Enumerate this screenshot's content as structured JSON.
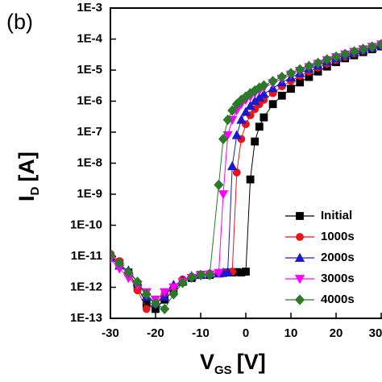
{
  "chart_data": {
    "type": "line",
    "panel_label": "(b)",
    "x_label": {
      "main": "V",
      "sub": "GS",
      "unit": "[V]"
    },
    "y_label": {
      "main": "I",
      "sub": "D",
      "unit": "[A]"
    },
    "ylog": true,
    "xlim": [
      -30,
      30
    ],
    "xticks": [
      -30,
      -20,
      -10,
      0,
      10,
      20,
      30
    ],
    "ylim": [
      1e-13,
      0.001
    ],
    "yticks": [
      {
        "value": 1e-13,
        "label": "1E-13"
      },
      {
        "value": 1e-12,
        "label": "1E-12"
      },
      {
        "value": 1e-11,
        "label": "1E-11"
      },
      {
        "value": 1e-10,
        "label": "1E-10"
      },
      {
        "value": 1e-09,
        "label": "1E-9"
      },
      {
        "value": 1e-08,
        "label": "1E-8"
      },
      {
        "value": 1e-07,
        "label": "1E-7"
      },
      {
        "value": 1e-06,
        "label": "1E-6"
      },
      {
        "value": 1e-05,
        "label": "1E-5"
      },
      {
        "value": 0.0001,
        "label": "1E-4"
      },
      {
        "value": 0.001,
        "label": "1E-3"
      }
    ],
    "legend": "lower right",
    "x": [
      -30,
      -28,
      -26,
      -24,
      -22,
      -20,
      -18,
      -16,
      -14,
      -12,
      -10,
      -8,
      -6,
      -5,
      -4,
      -3,
      -2,
      -1,
      0,
      1,
      2,
      3,
      4,
      6,
      8,
      10,
      12,
      14,
      16,
      18,
      20,
      22,
      24,
      26,
      28,
      30
    ],
    "series": [
      {
        "name": "Initial",
        "color": "#000000",
        "marker": "square",
        "values": [
          1e-11,
          6e-12,
          3e-12,
          1e-12,
          3e-13,
          2e-13,
          4e-13,
          8e-13,
          1.5e-12,
          2e-12,
          2.5e-12,
          2.5e-12,
          2.8e-12,
          2.9e-12,
          3e-12,
          3e-12,
          3.1e-12,
          3e-12,
          3.2e-12,
          3e-09,
          5e-08,
          1.5e-07,
          3e-07,
          8e-07,
          1.5e-06,
          2.5e-06,
          4e-06,
          6e-06,
          9e-06,
          1.3e-05,
          1.8e-05,
          2.4e-05,
          3e-05,
          3.8e-05,
          4.7e-05,
          5.8e-05
        ]
      },
      {
        "name": "1000s",
        "color": "#e8141b",
        "marker": "circle",
        "values": [
          1.2e-11,
          7e-12,
          2.5e-12,
          8e-13,
          2e-13,
          3e-13,
          6e-13,
          1e-12,
          1.8e-12,
          2.2e-12,
          2.6e-12,
          2.8e-12,
          2.9e-12,
          3e-12,
          3e-12,
          3.2e-12,
          5e-09,
          6e-08,
          1.8e-07,
          3.5e-07,
          5.5e-07,
          8e-07,
          1.1e-06,
          1.8e-06,
          3e-06,
          4.5e-06,
          6.5e-06,
          9e-06,
          1.2e-05,
          1.6e-05,
          2.1e-05,
          2.7e-05,
          3.4e-05,
          4.2e-05,
          5.1e-05,
          6.2e-05
        ]
      },
      {
        "name": "2000s",
        "color": "#1a1acc",
        "marker": "triangle-up",
        "values": [
          9e-12,
          5e-12,
          3.5e-12,
          1.5e-12,
          5e-13,
          3e-13,
          5e-13,
          1.2e-12,
          1.6e-12,
          2.3e-12,
          2.5e-12,
          2.7e-12,
          2.8e-12,
          3e-12,
          3.1e-12,
          8e-09,
          8e-08,
          2.5e-07,
          4.5e-07,
          7e-07,
          1e-06,
          1.3e-06,
          1.7e-06,
          2.6e-06,
          4e-06,
          5.8e-06,
          8e-06,
          1.1e-05,
          1.4e-05,
          1.9e-05,
          2.4e-05,
          3e-05,
          3.7e-05,
          4.5e-05,
          5.4e-05,
          6.5e-05
        ]
      },
      {
        "name": "3000s",
        "color": "#ff00ff",
        "marker": "triangle-down",
        "values": [
          8e-12,
          4e-12,
          2e-12,
          1.2e-12,
          7e-13,
          4e-13,
          7e-13,
          1e-12,
          1.5e-12,
          2e-12,
          2.4e-12,
          2.6e-12,
          2.9e-12,
          1e-09,
          8e-08,
          2.5e-07,
          5e-07,
          8e-07,
          1.1e-06,
          1.4e-06,
          1.8e-06,
          2.2e-06,
          2.7e-06,
          3.8e-06,
          5.3e-06,
          7.2e-06,
          9.5e-06,
          1.25e-05,
          1.6e-05,
          2.1e-05,
          2.6e-05,
          3.2e-05,
          3.9e-05,
          4.7e-05,
          5.6e-05,
          6.7e-05
        ]
      },
      {
        "name": "4000s",
        "color": "#2a7a2a",
        "marker": "diamond",
        "values": [
          1.1e-11,
          6e-12,
          3e-12,
          1.5e-12,
          6e-13,
          3e-13,
          2e-13,
          6e-13,
          1.4e-12,
          2.1e-12,
          2.5e-12,
          2.5e-12,
          2e-09,
          6e-08,
          2.5e-07,
          5e-07,
          8e-07,
          1.1e-06,
          1.4e-06,
          1.8e-06,
          2.2e-06,
          2.7e-06,
          3.2e-06,
          4.4e-06,
          6e-06,
          8e-06,
          1.05e-05,
          1.35e-05,
          1.7e-05,
          2.2e-05,
          2.7e-05,
          3.3e-05,
          4e-05,
          4.8e-05,
          5.7e-05,
          6.8e-05
        ]
      }
    ]
  }
}
